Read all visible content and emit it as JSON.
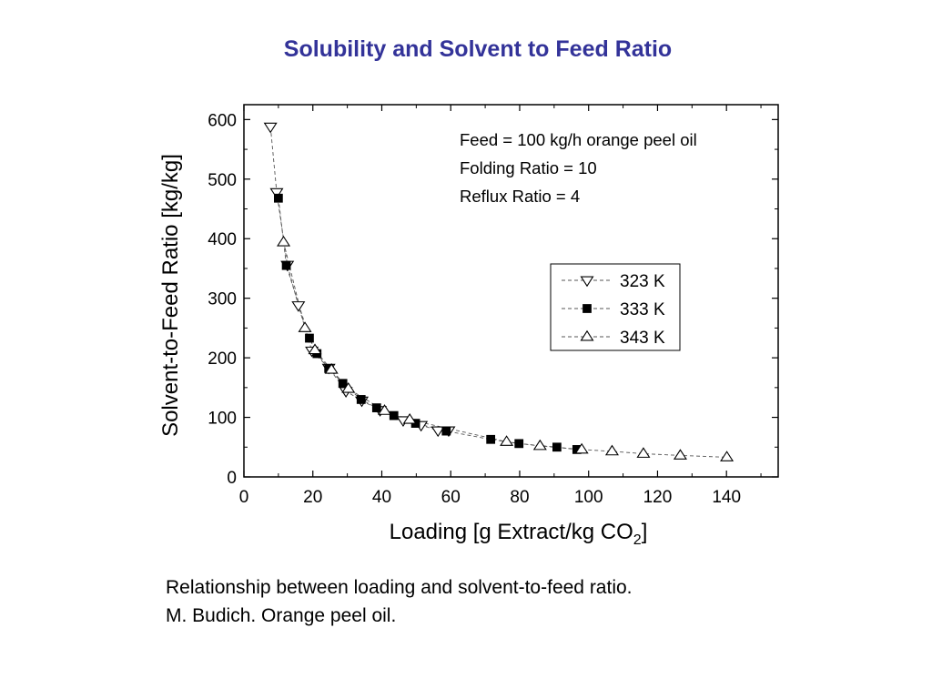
{
  "slide": {
    "title": "Solubility and Solvent to Feed Ratio",
    "title_color": "#333399",
    "caption_lines": [
      "Relationship between loading and solvent-to-feed ratio.",
      "M. Budich. Orange peel oil."
    ]
  },
  "chart_data": {
    "type": "scatter",
    "title": "",
    "xlabel": "Loading [g Extract/kg CO",
    "xlabel_subscript": "2",
    "xlabel_suffix": "]",
    "ylabel": "Solvent-to-Feed Ratio [kg/kg]",
    "xlim": [
      0,
      155
    ],
    "ylim": [
      0,
      625
    ],
    "x_ticks": [
      0,
      20,
      40,
      60,
      80,
      100,
      120,
      140
    ],
    "y_ticks": [
      0,
      100,
      200,
      300,
      400,
      500,
      600
    ],
    "grid": false,
    "legend_position": "right-middle",
    "annotations": [
      "Feed = 100 kg/h orange peel oil",
      "Folding Ratio = 10",
      "Reflux Ratio = 4"
    ],
    "series": [
      {
        "name": "323 K",
        "marker": "triangle-down-open",
        "x": [
          7.7,
          9.5,
          12.6,
          15.8,
          19.7,
          24.6,
          29.6,
          34.2,
          39.5,
          46.2,
          51.4,
          56.3,
          59.4
        ],
        "y": [
          588,
          478,
          356,
          288,
          212,
          183,
          144,
          128,
          112,
          95,
          87,
          78,
          78
        ]
      },
      {
        "name": "333 K",
        "marker": "square-filled",
        "x": [
          10.0,
          12.3,
          19.0,
          21.2,
          24.6,
          28.7,
          34.0,
          38.5,
          43.5,
          49.8,
          58.7,
          71.6,
          79.8,
          90.8,
          96.6
        ],
        "y": [
          468,
          355,
          233,
          207,
          182,
          157,
          130,
          116,
          103,
          90,
          77,
          63,
          56,
          50,
          46
        ]
      },
      {
        "name": "343 K",
        "marker": "triangle-up-open",
        "x": [
          11.5,
          17.7,
          20.6,
          25.4,
          30.3,
          40.8,
          48.1,
          76.2,
          85.9,
          98.0,
          106.8,
          115.9,
          126.6,
          140.1
        ],
        "y": [
          394,
          250,
          213,
          180,
          148,
          111,
          96,
          59,
          52,
          46,
          43,
          39,
          36,
          33
        ]
      }
    ]
  }
}
